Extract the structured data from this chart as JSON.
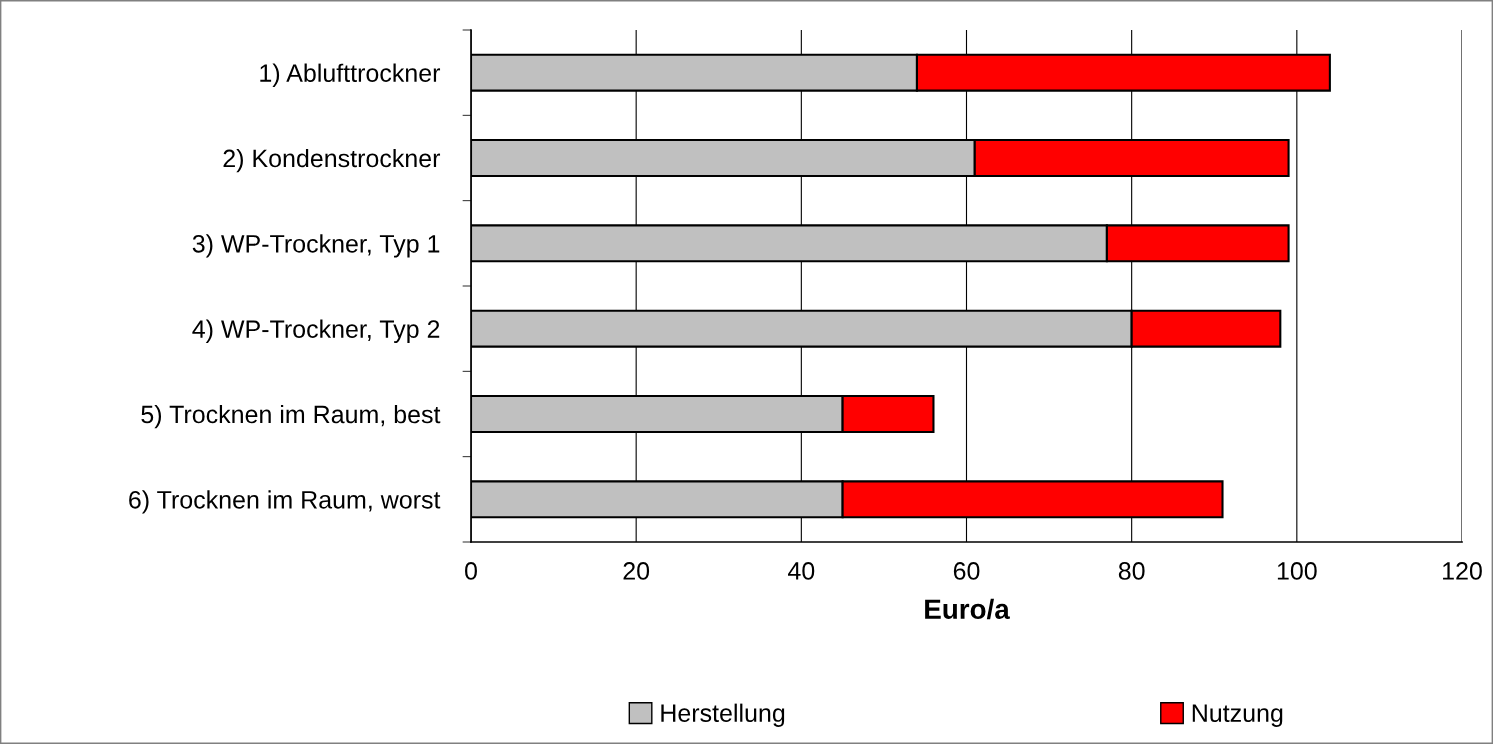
{
  "chart_data": {
    "type": "bar",
    "orientation": "horizontal",
    "stacked": true,
    "categories": [
      "1) Ablufttrockner",
      "2) Kondenstrockner",
      "3) WP-Trockner, Typ 1",
      "4) WP-Trockner, Typ 2",
      "5) Trocknen im Raum, best",
      "6) Trocknen im Raum, worst"
    ],
    "series": [
      {
        "name": "Herstellung",
        "color": "#c0c0c0",
        "values": [
          54,
          61,
          77,
          80,
          45,
          45
        ]
      },
      {
        "name": "Nutzung",
        "color": "#ff0000",
        "values": [
          50,
          38,
          22,
          18,
          11,
          46
        ]
      }
    ],
    "xlabel": "Euro/a",
    "xlim": [
      0,
      120
    ],
    "xticks": [
      0,
      20,
      40,
      60,
      80,
      100,
      120
    ],
    "grid": "x",
    "legend": "bottom"
  }
}
